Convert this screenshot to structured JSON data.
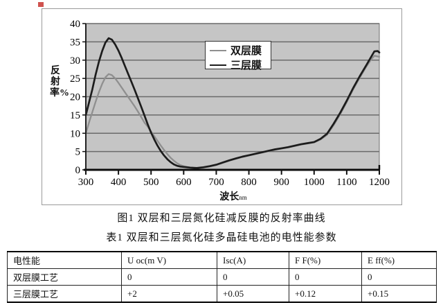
{
  "marks": {
    "red_square_color": "#d0534f"
  },
  "figure": {
    "y_axis_title": "反射率%",
    "x_axis_title": "波长",
    "x_axis_title_unit": "nm",
    "caption": "图1  双层和三层氮化硅减反膜的反射率曲线"
  },
  "chart_data": {
    "type": "line",
    "title": "",
    "xlabel": "波长nm",
    "ylabel": "反射率%",
    "xlim": [
      300,
      1200
    ],
    "ylim": [
      0,
      40
    ],
    "x_ticks": [
      300,
      400,
      500,
      600,
      700,
      800,
      900,
      1000,
      1100,
      1200
    ],
    "y_tick_step": 5,
    "grid": true,
    "legend_position": "top-center",
    "plot_bg": "#c5c5c5",
    "grid_color": "#6a6a6a",
    "series": [
      {
        "name": "双层膜",
        "color": "#8f8f8f",
        "points": [
          [
            300,
            10
          ],
          [
            310,
            13
          ],
          [
            320,
            15.8
          ],
          [
            330,
            18.6
          ],
          [
            340,
            21.2
          ],
          [
            350,
            23.5
          ],
          [
            360,
            25.3
          ],
          [
            370,
            26.2
          ],
          [
            380,
            25.9
          ],
          [
            390,
            25
          ],
          [
            400,
            23.8
          ],
          [
            410,
            22.5
          ],
          [
            420,
            21.2
          ],
          [
            430,
            19.9
          ],
          [
            440,
            18.6
          ],
          [
            450,
            17.3
          ],
          [
            460,
            15.9
          ],
          [
            470,
            14.4
          ],
          [
            480,
            12.9
          ],
          [
            490,
            11.8
          ],
          [
            500,
            10.5
          ],
          [
            510,
            9.2
          ],
          [
            520,
            7.9
          ],
          [
            530,
            6.6
          ],
          [
            540,
            5.4
          ],
          [
            550,
            4.3
          ],
          [
            560,
            3.3
          ],
          [
            570,
            2.5
          ],
          [
            580,
            1.8
          ],
          [
            590,
            1.3
          ],
          [
            600,
            1
          ],
          [
            620,
            0.6
          ],
          [
            640,
            0.5
          ],
          [
            660,
            0.6
          ],
          [
            680,
            0.9
          ],
          [
            700,
            1.3
          ],
          [
            720,
            1.9
          ],
          [
            740,
            2.5
          ],
          [
            760,
            3
          ],
          [
            780,
            3.5
          ],
          [
            800,
            3.9
          ],
          [
            820,
            4.3
          ],
          [
            840,
            4.7
          ],
          [
            860,
            5.1
          ],
          [
            880,
            5.5
          ],
          [
            900,
            5.8
          ],
          [
            920,
            6.1
          ],
          [
            940,
            6.5
          ],
          [
            960,
            6.9
          ],
          [
            980,
            7.2
          ],
          [
            1000,
            7.5
          ],
          [
            1020,
            8.3
          ],
          [
            1040,
            9.6
          ],
          [
            1060,
            12.2
          ],
          [
            1080,
            15.2
          ],
          [
            1100,
            18.5
          ],
          [
            1120,
            22
          ],
          [
            1140,
            25.2
          ],
          [
            1160,
            28.2
          ],
          [
            1175,
            30.2
          ],
          [
            1185,
            31.2
          ],
          [
            1200,
            30.9
          ]
        ]
      },
      {
        "name": "三层膜",
        "color": "#1c1c1c",
        "points": [
          [
            300,
            15
          ],
          [
            310,
            18.5
          ],
          [
            320,
            22
          ],
          [
            330,
            26
          ],
          [
            340,
            29.5
          ],
          [
            350,
            32.5
          ],
          [
            360,
            34.8
          ],
          [
            370,
            36
          ],
          [
            380,
            35.6
          ],
          [
            390,
            34.3
          ],
          [
            400,
            32.6
          ],
          [
            410,
            30.6
          ],
          [
            420,
            28.4
          ],
          [
            430,
            26.2
          ],
          [
            440,
            24
          ],
          [
            450,
            21.8
          ],
          [
            460,
            19.5
          ],
          [
            470,
            17.2
          ],
          [
            480,
            14.8
          ],
          [
            490,
            12.4
          ],
          [
            500,
            10.2
          ],
          [
            510,
            8.3
          ],
          [
            520,
            6.6
          ],
          [
            530,
            5.1
          ],
          [
            540,
            3.9
          ],
          [
            550,
            2.9
          ],
          [
            560,
            2.1
          ],
          [
            570,
            1.5
          ],
          [
            580,
            1.1
          ],
          [
            590,
            0.9
          ],
          [
            600,
            0.8
          ],
          [
            620,
            0.6
          ],
          [
            640,
            0.5
          ],
          [
            660,
            0.7
          ],
          [
            680,
            1
          ],
          [
            700,
            1.4
          ],
          [
            720,
            2
          ],
          [
            740,
            2.6
          ],
          [
            760,
            3.1
          ],
          [
            780,
            3.6
          ],
          [
            800,
            4
          ],
          [
            820,
            4.4
          ],
          [
            840,
            4.8
          ],
          [
            860,
            5.2
          ],
          [
            880,
            5.6
          ],
          [
            900,
            5.9
          ],
          [
            920,
            6.2
          ],
          [
            940,
            6.6
          ],
          [
            960,
            7
          ],
          [
            980,
            7.3
          ],
          [
            1000,
            7.6
          ],
          [
            1020,
            8.5
          ],
          [
            1040,
            9.9
          ],
          [
            1060,
            12.6
          ],
          [
            1080,
            15.6
          ],
          [
            1100,
            18.9
          ],
          [
            1120,
            22.4
          ],
          [
            1140,
            25.6
          ],
          [
            1160,
            28.6
          ],
          [
            1175,
            30.9
          ],
          [
            1185,
            32.4
          ],
          [
            1195,
            32.5
          ],
          [
            1200,
            32.1
          ]
        ]
      }
    ]
  },
  "table_caption": "表1  双层和三层氮化硅多晶硅电池的电性能参数",
  "table": {
    "headers": [
      "电性能",
      "U oc(m V)",
      "Isc(A)",
      "F F(%)",
      "E ff(%)"
    ],
    "rows": [
      {
        "label": "双层膜工艺",
        "values": [
          "0",
          "0",
          "0",
          "0"
        ]
      },
      {
        "label": "三层膜工艺",
        "values": [
          "+2",
          "+0.05",
          "+0.12",
          "+0.15"
        ]
      }
    ]
  }
}
